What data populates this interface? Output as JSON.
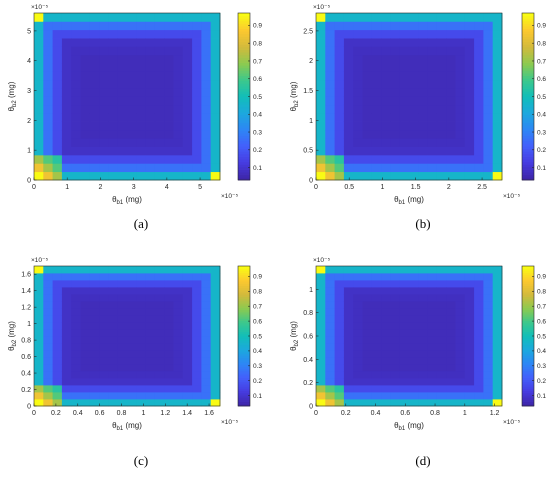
{
  "chart_data": [
    {
      "type": "heatmap",
      "panel_label": "(a)",
      "xlabel_main": "θ",
      "xlabel_sub": "b1",
      "xlabel_unit": "(mg)",
      "ylabel_main": "θ",
      "ylabel_sub": "b2",
      "ylabel_unit": "(mg)",
      "x_exponent": "×10⁻⁵",
      "y_exponent": "×10⁻⁵",
      "x_ticks": [
        "0",
        "1",
        "2",
        "3",
        "4",
        "5"
      ],
      "x_tick_values": [
        0,
        1,
        2,
        3,
        4,
        5
      ],
      "y_ticks": [
        "0",
        "1",
        "2",
        "3",
        "4",
        "5"
      ],
      "y_tick_values": [
        0,
        1,
        2,
        3,
        4,
        5
      ],
      "xlim": [
        0,
        5.6
      ],
      "ylim": [
        0,
        5.6
      ],
      "grid_n": 20,
      "colorbar_ticks": [
        "0.1",
        "0.2",
        "0.3",
        "0.4",
        "0.5",
        "0.6",
        "0.7",
        "0.8",
        "0.9"
      ],
      "colorbar_tick_values": [
        0.1,
        0.2,
        0.3,
        0.4,
        0.5,
        0.6,
        0.7,
        0.8,
        0.9
      ],
      "clim": [
        0.03,
        0.97
      ]
    },
    {
      "type": "heatmap",
      "panel_label": "(b)",
      "xlabel_main": "θ",
      "xlabel_sub": "b1",
      "xlabel_unit": "(mg)",
      "ylabel_main": "θ",
      "ylabel_sub": "b2",
      "ylabel_unit": "(mg)",
      "x_exponent": "×10⁻⁵",
      "y_exponent": "×10⁻⁵",
      "x_ticks": [
        "0",
        "0.5",
        "1",
        "1.5",
        "2",
        "2.5"
      ],
      "x_tick_values": [
        0,
        0.5,
        1,
        1.5,
        2,
        2.5
      ],
      "y_ticks": [
        "0",
        "0.5",
        "1",
        "1.5",
        "2",
        "2.5"
      ],
      "y_tick_values": [
        0,
        0.5,
        1,
        1.5,
        2,
        2.5
      ],
      "xlim": [
        0,
        2.8
      ],
      "ylim": [
        0,
        2.8
      ],
      "grid_n": 20,
      "colorbar_ticks": [
        "0.1",
        "0.2",
        "0.3",
        "0.4",
        "0.5",
        "0.6",
        "0.7",
        "0.8",
        "0.9"
      ],
      "colorbar_tick_values": [
        0.1,
        0.2,
        0.3,
        0.4,
        0.5,
        0.6,
        0.7,
        0.8,
        0.9
      ],
      "clim": [
        0.03,
        0.97
      ]
    },
    {
      "type": "heatmap",
      "panel_label": "(c)",
      "xlabel_main": "θ",
      "xlabel_sub": "b1",
      "xlabel_unit": "(mg)",
      "ylabel_main": "θ",
      "ylabel_sub": "b2",
      "ylabel_unit": "(mg)",
      "x_exponent": "×10⁻⁵",
      "y_exponent": "×10⁻⁵",
      "x_ticks": [
        "0",
        "0.2",
        "0.4",
        "0.6",
        "0.8",
        "1",
        "1.2",
        "1.4",
        "1.6"
      ],
      "x_tick_values": [
        0,
        0.2,
        0.4,
        0.6,
        0.8,
        1,
        1.2,
        1.4,
        1.6
      ],
      "y_ticks": [
        "0",
        "0.2",
        "0.4",
        "0.6",
        "0.8",
        "1",
        "1.2",
        "1.4",
        "1.6"
      ],
      "y_tick_values": [
        0,
        0.2,
        0.4,
        0.6,
        0.8,
        1,
        1.2,
        1.4,
        1.6
      ],
      "xlim": [
        0,
        1.7
      ],
      "ylim": [
        0,
        1.7
      ],
      "grid_n": 20,
      "colorbar_ticks": [
        "0.1",
        "0.2",
        "0.3",
        "0.4",
        "0.5",
        "0.6",
        "0.7",
        "0.8",
        "0.9"
      ],
      "colorbar_tick_values": [
        0.1,
        0.2,
        0.3,
        0.4,
        0.5,
        0.6,
        0.7,
        0.8,
        0.9
      ],
      "clim": [
        0.03,
        0.97
      ]
    },
    {
      "type": "heatmap",
      "panel_label": "(d)",
      "xlabel_main": "θ",
      "xlabel_sub": "b1",
      "xlabel_unit": "(mg)",
      "ylabel_main": "θ",
      "ylabel_sub": "b2",
      "ylabel_unit": "(mg)",
      "x_exponent": "×10⁻⁵",
      "y_exponent": "×10⁻⁵",
      "x_ticks": [
        "0",
        "0.2",
        "0.4",
        "0.6",
        "0.8",
        "1",
        "1.2"
      ],
      "x_tick_values": [
        0,
        0.2,
        0.4,
        0.6,
        0.8,
        1,
        1.2
      ],
      "y_ticks": [
        "0",
        "0.2",
        "0.4",
        "0.6",
        "0.8",
        "1"
      ],
      "y_tick_values": [
        0,
        0.2,
        0.4,
        0.6,
        0.8,
        1
      ],
      "xlim": [
        0,
        1.25
      ],
      "ylim": [
        0,
        1.2
      ],
      "grid_n": 20,
      "colorbar_ticks": [
        "0.1",
        "0.2",
        "0.3",
        "0.4",
        "0.5",
        "0.6",
        "0.7",
        "0.8",
        "0.9"
      ],
      "colorbar_tick_values": [
        0.1,
        0.2,
        0.3,
        0.4,
        0.5,
        0.6,
        0.7,
        0.8,
        0.9
      ],
      "clim": [
        0.03,
        0.97
      ]
    }
  ]
}
